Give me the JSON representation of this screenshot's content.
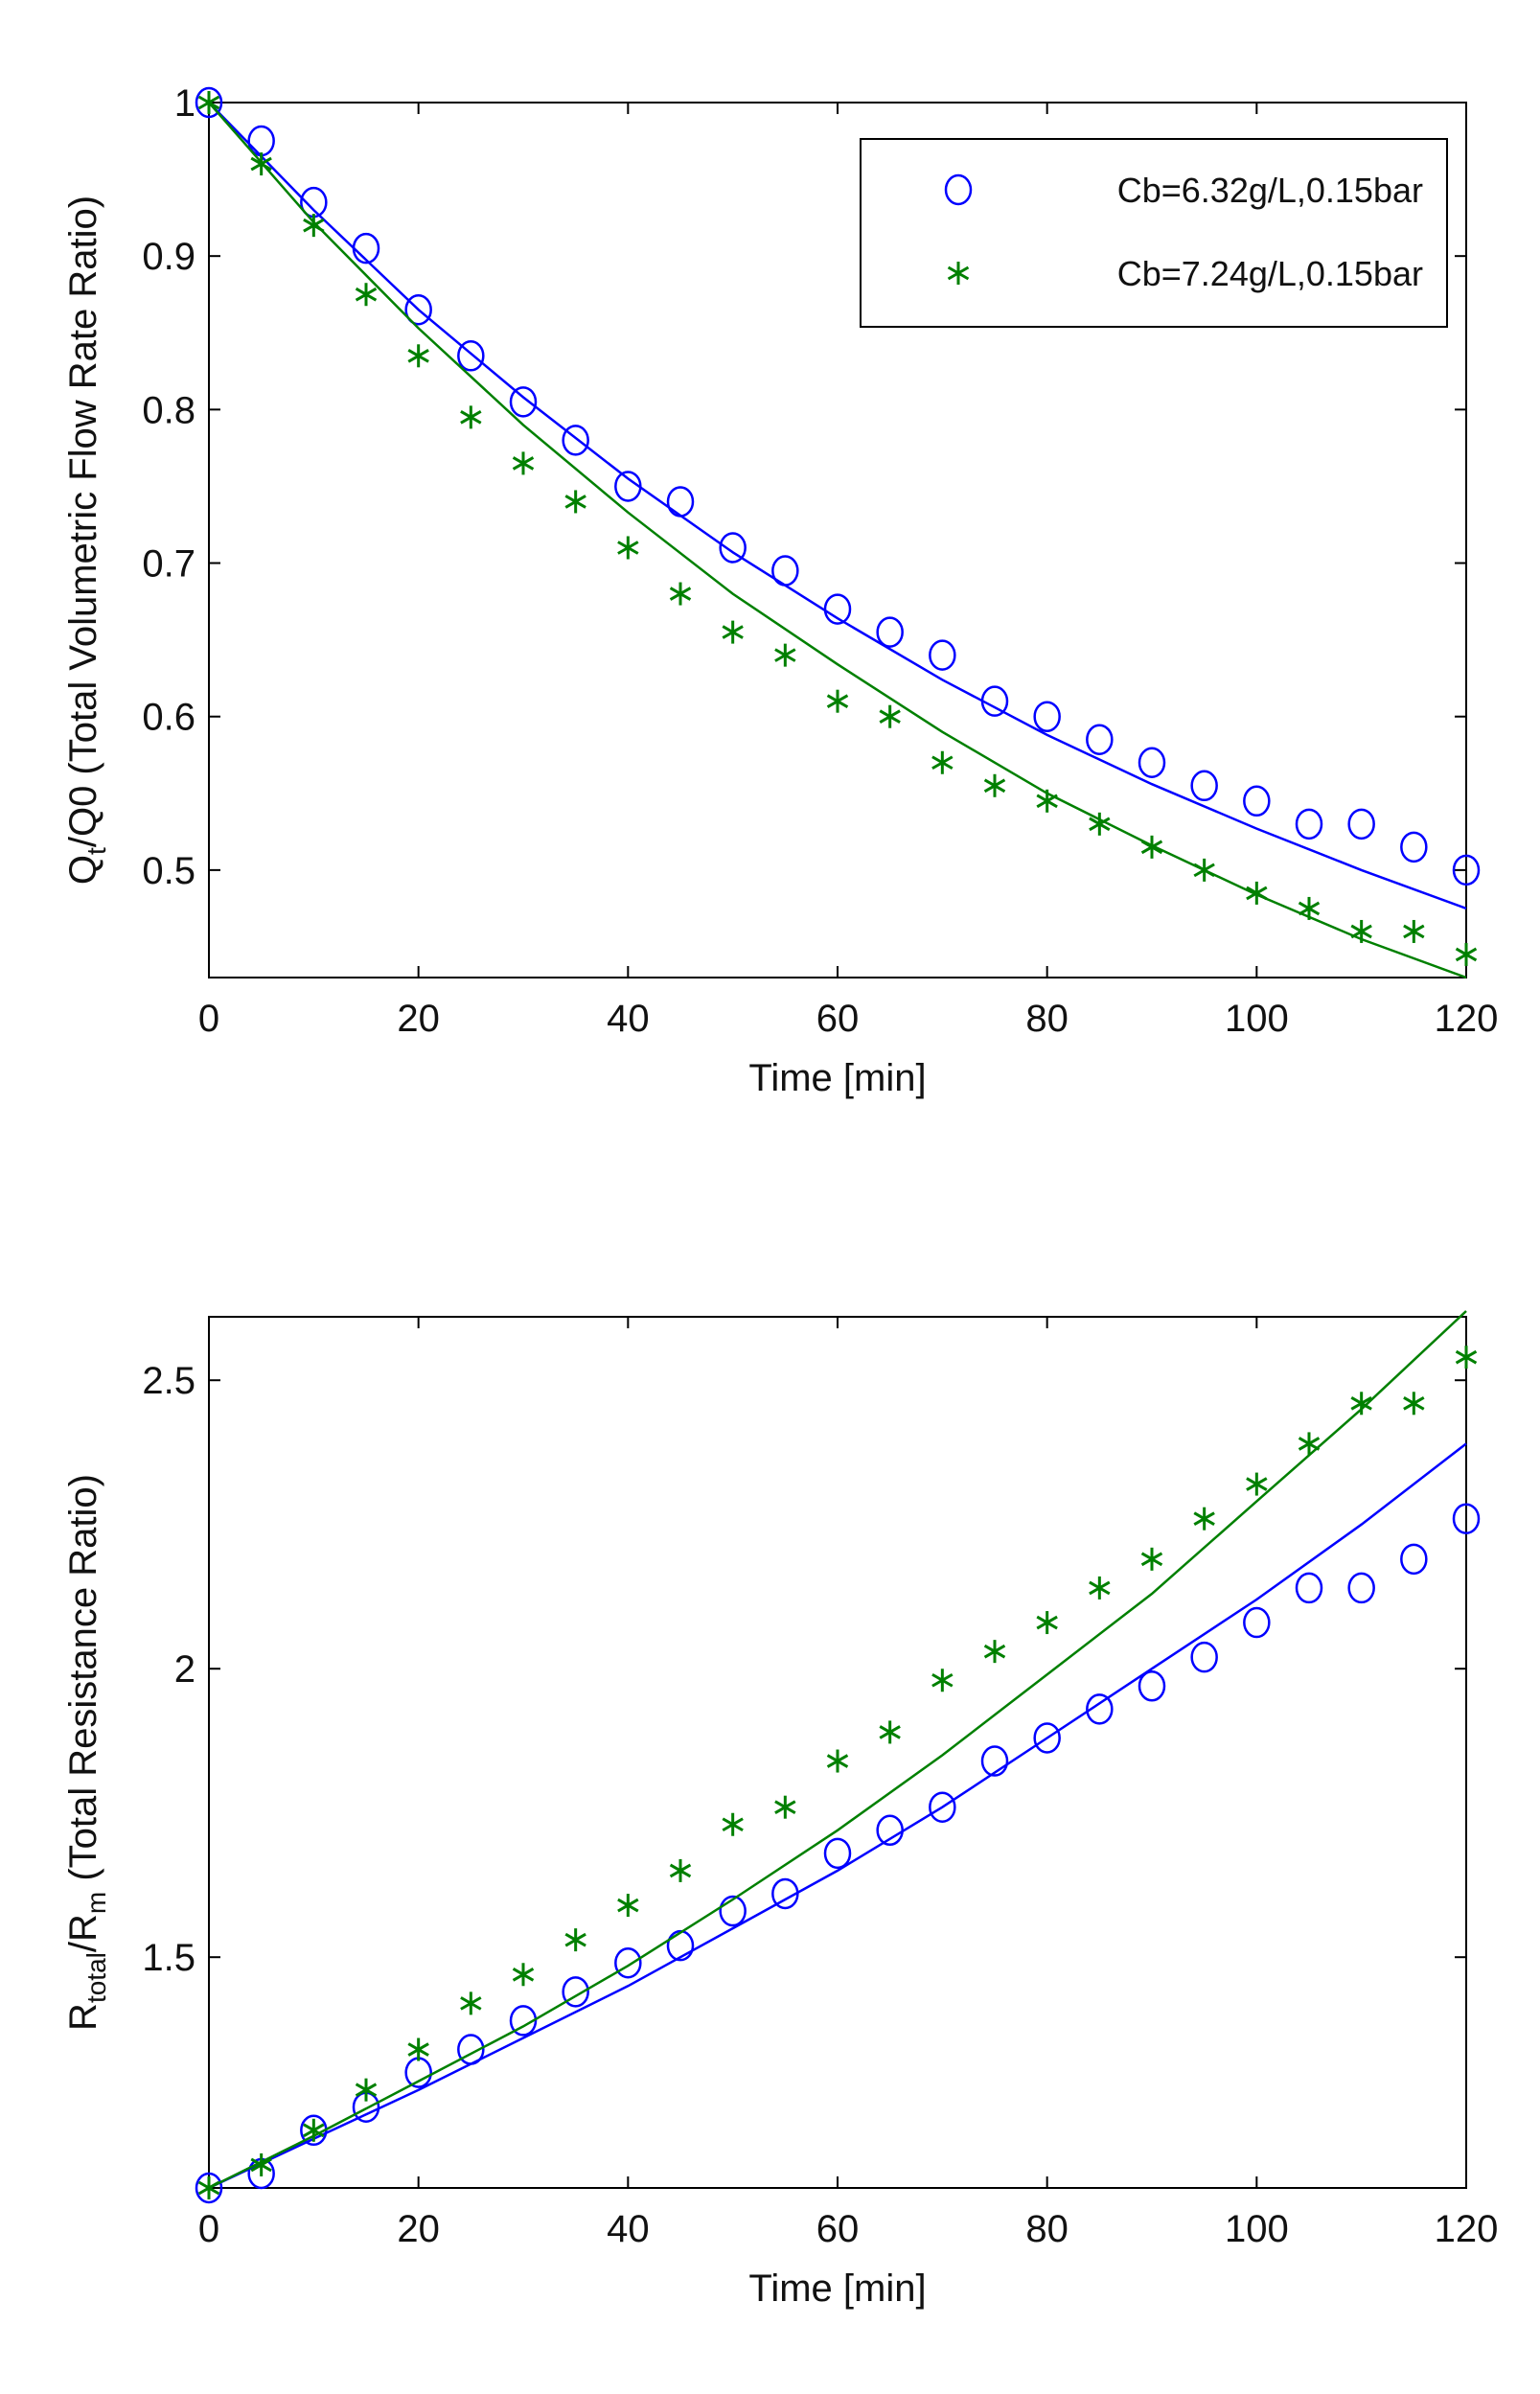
{
  "chart_data": [
    {
      "type": "scatter",
      "title": "",
      "xlabel": "Time [min]",
      "ylabel": {
        "main": "Q",
        "sub": "t",
        "rest": "/Q0  (Total Volumetric Flow Rate Ratio)"
      },
      "xlim": [
        0,
        120
      ],
      "ylim": [
        0.43,
        1.0
      ],
      "xticks": [
        0,
        20,
        40,
        60,
        80,
        100,
        120
      ],
      "xtick_labels": [
        "0",
        "20",
        "40",
        "60",
        "80",
        "100",
        "120"
      ],
      "yticks": [
        0.5,
        0.6,
        0.7,
        0.8,
        0.9,
        1.0
      ],
      "ytick_labels": [
        "0.5",
        "0.6",
        "0.7",
        "0.8",
        "0.9",
        "1"
      ],
      "grid": false,
      "legend_position": "top-right",
      "series": [
        {
          "name": "Cb=6.32g/L,0.15bar",
          "color": "#0000ff",
          "marker": "circle",
          "x": [
            0,
            5,
            10,
            15,
            20,
            25,
            30,
            35,
            40,
            45,
            50,
            55,
            60,
            65,
            70,
            75,
            80,
            85,
            90,
            95,
            100,
            105,
            110,
            115,
            120
          ],
          "y": [
            1.0,
            0.975,
            0.935,
            0.905,
            0.865,
            0.835,
            0.805,
            0.78,
            0.75,
            0.74,
            0.71,
            0.695,
            0.67,
            0.655,
            0.64,
            0.61,
            0.6,
            0.585,
            0.57,
            0.555,
            0.545,
            0.53,
            0.53,
            0.515,
            0.5
          ],
          "fit_x": [
            0,
            10,
            20,
            30,
            40,
            50,
            60,
            70,
            80,
            90,
            100,
            110,
            120
          ],
          "fit_y": [
            1.0,
            0.93,
            0.865,
            0.808,
            0.755,
            0.707,
            0.664,
            0.624,
            0.588,
            0.556,
            0.527,
            0.5,
            0.475
          ]
        },
        {
          "name": "Cb=7.24g/L,0.15bar",
          "color": "#008000",
          "marker": "asterisk",
          "x": [
            0,
            5,
            10,
            15,
            20,
            25,
            30,
            35,
            40,
            45,
            50,
            55,
            60,
            65,
            70,
            75,
            80,
            85,
            90,
            95,
            100,
            105,
            110,
            115,
            120
          ],
          "y": [
            1.0,
            0.96,
            0.92,
            0.875,
            0.835,
            0.795,
            0.765,
            0.74,
            0.71,
            0.68,
            0.655,
            0.64,
            0.61,
            0.6,
            0.57,
            0.555,
            0.545,
            0.53,
            0.515,
            0.5,
            0.485,
            0.475,
            0.46,
            0.46,
            0.445
          ],
          "fit_x": [
            0,
            10,
            20,
            30,
            40,
            50,
            60,
            70,
            80,
            90,
            100,
            110,
            120
          ],
          "fit_y": [
            1.0,
            0.922,
            0.853,
            0.79,
            0.733,
            0.68,
            0.634,
            0.59,
            0.55,
            0.516,
            0.484,
            0.455,
            0.43
          ]
        }
      ]
    },
    {
      "type": "scatter",
      "title": "",
      "xlabel": "Time [min]",
      "ylabel": {
        "main": "R",
        "sub": "total",
        "mid": "/R",
        "sub2": "m",
        "rest": " (Total Resistance Ratio)"
      },
      "xlim": [
        0,
        120
      ],
      "ylim": [
        1.1,
        2.61
      ],
      "xticks": [
        0,
        20,
        40,
        60,
        80,
        100,
        120
      ],
      "xtick_labels": [
        "0",
        "20",
        "40",
        "60",
        "80",
        "100",
        "120"
      ],
      "yticks": [
        1.5,
        2.0,
        2.5
      ],
      "ytick_labels": [
        "1.5",
        "2",
        "2.5"
      ],
      "grid": false,
      "series": [
        {
          "name": "Cb=6.32g/L,0.15bar",
          "color": "#0000ff",
          "marker": "circle",
          "x": [
            0,
            5,
            10,
            15,
            20,
            25,
            30,
            35,
            40,
            45,
            50,
            55,
            60,
            65,
            70,
            75,
            80,
            85,
            90,
            95,
            100,
            105,
            110,
            115,
            120
          ],
          "y": [
            1.1,
            1.125,
            1.2,
            1.24,
            1.3,
            1.34,
            1.39,
            1.44,
            1.49,
            1.52,
            1.58,
            1.61,
            1.68,
            1.72,
            1.76,
            1.84,
            1.88,
            1.93,
            1.97,
            2.02,
            2.08,
            2.14,
            2.14,
            2.19,
            2.26
          ],
          "fit_x": [
            0,
            10,
            20,
            30,
            40,
            50,
            60,
            70,
            80,
            90,
            100,
            110,
            120
          ],
          "fit_y": [
            1.1,
            1.185,
            1.27,
            1.36,
            1.45,
            1.55,
            1.65,
            1.76,
            1.88,
            2.0,
            2.12,
            2.25,
            2.39
          ]
        },
        {
          "name": "Cb=7.24g/L,0.15bar",
          "color": "#008000",
          "marker": "asterisk",
          "x": [
            0,
            5,
            10,
            15,
            20,
            25,
            30,
            35,
            40,
            45,
            50,
            55,
            60,
            65,
            70,
            75,
            80,
            85,
            90,
            95,
            100,
            105,
            110,
            115,
            120
          ],
          "y": [
            1.1,
            1.14,
            1.2,
            1.27,
            1.34,
            1.42,
            1.47,
            1.53,
            1.59,
            1.65,
            1.73,
            1.76,
            1.84,
            1.89,
            1.98,
            2.03,
            2.08,
            2.14,
            2.19,
            2.26,
            2.32,
            2.39,
            2.46,
            2.46,
            2.54
          ],
          "fit_x": [
            0,
            10,
            20,
            30,
            40,
            50,
            60,
            70,
            80,
            90,
            100,
            110,
            120
          ],
          "fit_y": [
            1.1,
            1.19,
            1.285,
            1.38,
            1.485,
            1.6,
            1.72,
            1.85,
            1.99,
            2.13,
            2.29,
            2.45,
            2.62
          ]
        }
      ]
    }
  ]
}
